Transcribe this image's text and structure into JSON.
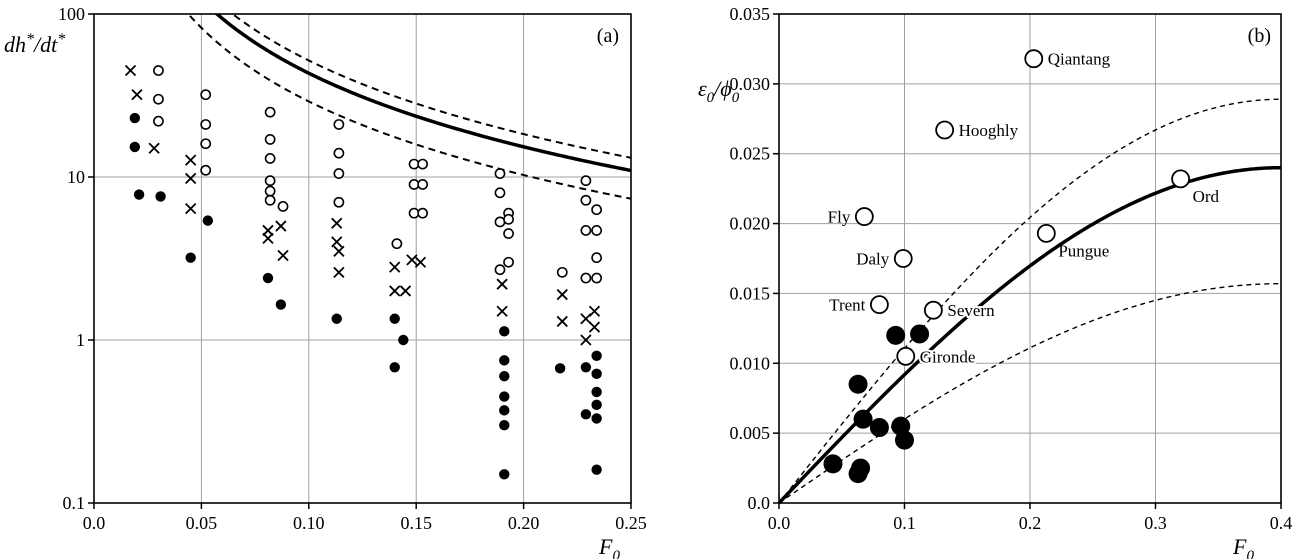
{
  "chart_data": [
    {
      "type": "scatter",
      "panel_label": "(a)",
      "xlabel_parts": {
        "main": "F",
        "sub": "0"
      },
      "ylabel_parts": {
        "main": "dh",
        "sup1": "*",
        "mid": "/dt",
        "sup2": "*"
      },
      "xlim": [
        0.0,
        0.25
      ],
      "ylim": [
        0.1,
        100
      ],
      "yscale": "log",
      "grid": true,
      "xticks": [
        "0.0",
        "0.05",
        "0.10",
        "0.15",
        "0.20",
        "0.25"
      ],
      "xtick_values": [
        0.0,
        0.05,
        0.1,
        0.15,
        0.2,
        0.25
      ],
      "yticks": [
        "0.1",
        "1",
        "10",
        "100"
      ],
      "ytick_values": [
        0.1,
        1,
        10,
        100
      ],
      "curves": [
        {
          "style": "solid-thick",
          "k": 1.37,
          "p": 1.5
        },
        {
          "style": "dashed",
          "k": 1.64,
          "p": 1.5
        },
        {
          "style": "dashed",
          "k": 0.92,
          "p": 1.5
        }
      ],
      "series": [
        {
          "marker": "open-circle",
          "points": [
            [
              0.03,
              45
            ],
            [
              0.03,
              30
            ],
            [
              0.03,
              22
            ],
            [
              0.052,
              32
            ],
            [
              0.052,
              21
            ],
            [
              0.052,
              16
            ],
            [
              0.052,
              11
            ],
            [
              0.082,
              25
            ],
            [
              0.082,
              17
            ],
            [
              0.082,
              13
            ],
            [
              0.082,
              9.5
            ],
            [
              0.082,
              8.2
            ],
            [
              0.082,
              7.2
            ],
            [
              0.088,
              6.6
            ],
            [
              0.114,
              21
            ],
            [
              0.114,
              14
            ],
            [
              0.114,
              10.5
            ],
            [
              0.114,
              7
            ],
            [
              0.141,
              3.9
            ],
            [
              0.149,
              12
            ],
            [
              0.149,
              9
            ],
            [
              0.149,
              6
            ],
            [
              0.153,
              12
            ],
            [
              0.153,
              9
            ],
            [
              0.153,
              6
            ],
            [
              0.189,
              10.5
            ],
            [
              0.189,
              8
            ],
            [
              0.189,
              5.3
            ],
            [
              0.189,
              2.7
            ],
            [
              0.193,
              6
            ],
            [
              0.193,
              4.5
            ],
            [
              0.193,
              3
            ],
            [
              0.193,
              5.5
            ],
            [
              0.218,
              2.6
            ],
            [
              0.229,
              9.5
            ],
            [
              0.229,
              7.2
            ],
            [
              0.229,
              4.7
            ],
            [
              0.229,
              2.4
            ],
            [
              0.234,
              6.3
            ],
            [
              0.234,
              4.7
            ],
            [
              0.234,
              3.2
            ],
            [
              0.234,
              2.4
            ]
          ]
        },
        {
          "marker": "cross",
          "points": [
            [
              0.017,
              45
            ],
            [
              0.02,
              32
            ],
            [
              0.028,
              15
            ],
            [
              0.045,
              12.7
            ],
            [
              0.045,
              9.8
            ],
            [
              0.045,
              6.4
            ],
            [
              0.081,
              4.7
            ],
            [
              0.081,
              4.2
            ],
            [
              0.087,
              5
            ],
            [
              0.088,
              3.3
            ],
            [
              0.113,
              5.2
            ],
            [
              0.113,
              4
            ],
            [
              0.114,
              3.5
            ],
            [
              0.114,
              2.6
            ],
            [
              0.14,
              2.8
            ],
            [
              0.14,
              2
            ],
            [
              0.145,
              2
            ],
            [
              0.148,
              3.1
            ],
            [
              0.152,
              3
            ],
            [
              0.19,
              2.2
            ],
            [
              0.19,
              1.5
            ],
            [
              0.218,
              1.9
            ],
            [
              0.218,
              1.3
            ],
            [
              0.229,
              1.35
            ],
            [
              0.229,
              1
            ],
            [
              0.233,
              1.5
            ],
            [
              0.233,
              1.2
            ]
          ]
        },
        {
          "marker": "filled-circle",
          "points": [
            [
              0.019,
              23
            ],
            [
              0.019,
              15.3
            ],
            [
              0.021,
              7.8
            ],
            [
              0.031,
              7.6
            ],
            [
              0.045,
              3.2
            ],
            [
              0.053,
              5.4
            ],
            [
              0.081,
              2.4
            ],
            [
              0.087,
              1.65
            ],
            [
              0.113,
              1.35
            ],
            [
              0.14,
              1.35
            ],
            [
              0.14,
              0.68
            ],
            [
              0.144,
              1.0
            ],
            [
              0.191,
              1.13
            ],
            [
              0.191,
              0.75
            ],
            [
              0.191,
              0.6
            ],
            [
              0.191,
              0.45
            ],
            [
              0.191,
              0.37
            ],
            [
              0.191,
              0.3
            ],
            [
              0.191,
              0.15
            ],
            [
              0.217,
              0.67
            ],
            [
              0.229,
              0.68
            ],
            [
              0.229,
              0.35
            ],
            [
              0.234,
              0.8
            ],
            [
              0.234,
              0.62
            ],
            [
              0.234,
              0.48
            ],
            [
              0.234,
              0.4
            ],
            [
              0.234,
              0.33
            ],
            [
              0.234,
              0.16
            ]
          ]
        }
      ]
    },
    {
      "type": "scatter",
      "panel_label": "(b)",
      "xlabel_parts": {
        "main": "F",
        "sub": "0"
      },
      "ylabel_parts": {
        "num": "ε",
        "num_sub": "0",
        "slash": "/",
        "den": "ϕ",
        "den_sub": "0"
      },
      "xlim": [
        0.0,
        0.4
      ],
      "ylim": [
        0.0,
        0.035
      ],
      "grid": true,
      "xticks": [
        "0.0",
        "0.1",
        "0.2",
        "0.3",
        "0.4"
      ],
      "xtick_values": [
        0.0,
        0.1,
        0.2,
        0.3,
        0.4
      ],
      "yticks": [
        "0.0",
        "0.005",
        "0.010",
        "0.015",
        "0.020",
        "0.025",
        "0.030",
        "0.035"
      ],
      "ytick_values": [
        0.0,
        0.005,
        0.01,
        0.015,
        0.02,
        0.025,
        0.03,
        0.035
      ],
      "curves": [
        {
          "style": "solid-thick",
          "ymax": 0.024
        },
        {
          "style": "dashed",
          "ymax": 0.0289
        },
        {
          "style": "dashed",
          "ymax": 0.0157
        }
      ],
      "estuaries": [
        {
          "name": "Qiantang",
          "x": 0.203,
          "y": 0.0318,
          "label_side": "right"
        },
        {
          "name": "Hooghly",
          "x": 0.132,
          "y": 0.0267,
          "label_side": "right"
        },
        {
          "name": "Fly",
          "x": 0.068,
          "y": 0.0205,
          "label_side": "left"
        },
        {
          "name": "Daly",
          "x": 0.099,
          "y": 0.0175,
          "label_side": "left"
        },
        {
          "name": "Trent",
          "x": 0.08,
          "y": 0.0142,
          "label_side": "left"
        },
        {
          "name": "Severn",
          "x": 0.123,
          "y": 0.0138,
          "label_side": "right"
        },
        {
          "name": "Gironde",
          "x": 0.101,
          "y": 0.0105,
          "label_side": "right"
        },
        {
          "name": "Pungue",
          "x": 0.213,
          "y": 0.0193,
          "label_side": "below-right"
        },
        {
          "name": "Ord",
          "x": 0.32,
          "y": 0.0232,
          "label_side": "below-right"
        }
      ],
      "filled_points": [
        [
          0.043,
          0.0028
        ],
        [
          0.063,
          0.0021
        ],
        [
          0.065,
          0.0025
        ],
        [
          0.063,
          0.0085
        ],
        [
          0.067,
          0.006
        ],
        [
          0.08,
          0.0054
        ],
        [
          0.097,
          0.0055
        ],
        [
          0.1,
          0.0045
        ],
        [
          0.093,
          0.012
        ],
        [
          0.112,
          0.0121
        ]
      ]
    }
  ]
}
